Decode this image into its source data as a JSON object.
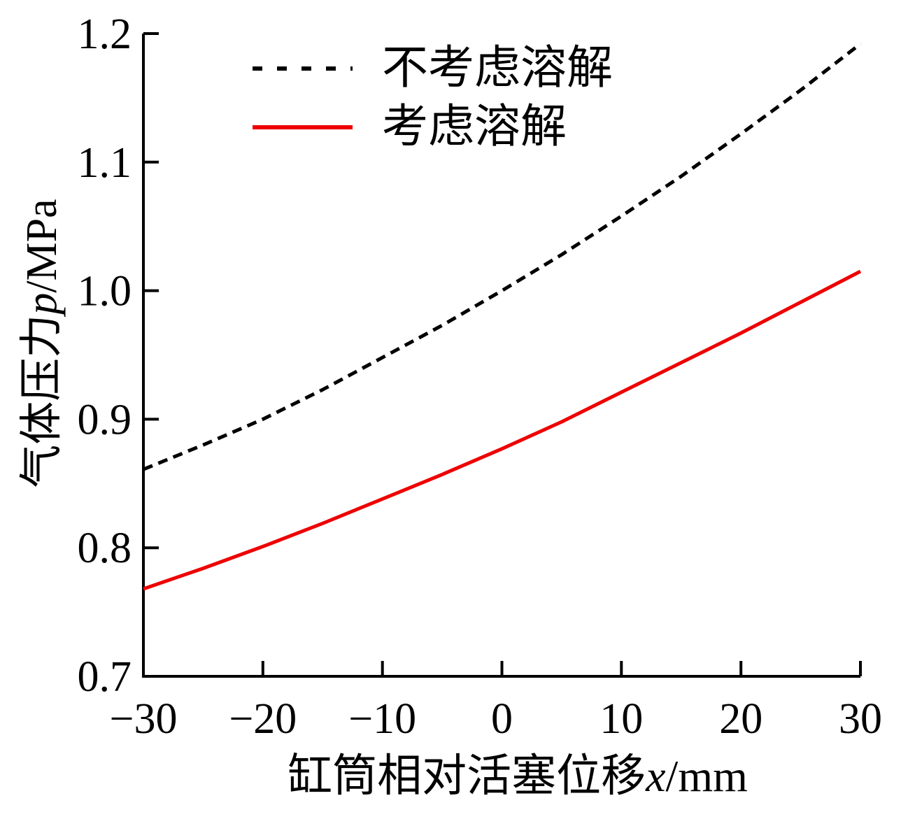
{
  "chart_data": {
    "type": "line",
    "title": "",
    "xlabel": "缸筒相对活塞位移x/mm",
    "ylabel": "气体压力p/MPa",
    "xlabel_parts": {
      "prefix": "缸筒相对活塞位移",
      "symbol": "x",
      "suffix": "/mm"
    },
    "ylabel_parts": {
      "prefix": "气体压力",
      "symbol": "p",
      "suffix": "/MPa"
    },
    "xlim": [
      -30,
      30
    ],
    "ylim": [
      0.7,
      1.2
    ],
    "x_ticks": [
      -30,
      -20,
      -10,
      0,
      10,
      20,
      30
    ],
    "x_tick_labels": [
      "−30",
      "−20",
      "−10",
      "0",
      "10",
      "20",
      "30"
    ],
    "y_ticks": [
      0.7,
      0.8,
      0.9,
      1.0,
      1.1,
      1.2
    ],
    "y_tick_labels": [
      "0.7",
      "0.8",
      "0.9",
      "1.0",
      "1.1",
      "1.2"
    ],
    "grid": false,
    "legend_position": "inside top-left",
    "x": [
      -30,
      -25,
      -20,
      -15,
      -10,
      -5,
      0,
      5,
      10,
      15,
      20,
      25,
      30
    ],
    "series": [
      {
        "name": "不考虑溶解",
        "style": "dashed",
        "color": "#000000",
        "values": [
          0.861,
          0.88,
          0.9,
          0.923,
          0.948,
          0.973,
          1.0,
          1.028,
          1.058,
          1.089,
          1.122,
          1.156,
          1.192
        ]
      },
      {
        "name": "考虑溶解",
        "style": "solid",
        "color": "#ee0000",
        "values": [
          0.768,
          0.784,
          0.801,
          0.819,
          0.838,
          0.857,
          0.877,
          0.898,
          0.921,
          0.944,
          0.967,
          0.991,
          1.015
        ]
      }
    ]
  },
  "colors": {
    "background": "#ffffff",
    "axis": "#000000",
    "series1": "#000000",
    "series2": "#ee0000"
  }
}
